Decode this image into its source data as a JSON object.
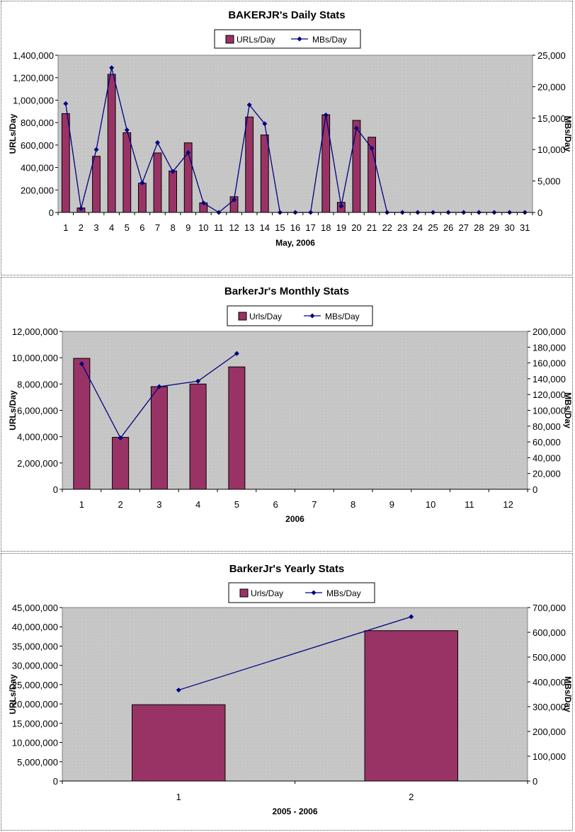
{
  "colors": {
    "bar": "#993366",
    "line": "#000080",
    "plot_background": "#c0c0c0"
  },
  "chart_data": [
    {
      "type": "bar",
      "title": "BAKERJR's Daily Stats",
      "xlabel": "May, 2006",
      "ylabel": "URLs/Day",
      "y2label": "MBs/Day",
      "categories": [
        "1",
        "2",
        "3",
        "4",
        "5",
        "6",
        "7",
        "8",
        "9",
        "10",
        "11",
        "12",
        "13",
        "14",
        "15",
        "16",
        "17",
        "18",
        "19",
        "20",
        "21",
        "22",
        "23",
        "24",
        "25",
        "26",
        "27",
        "28",
        "29",
        "30",
        "31"
      ],
      "ylim": [
        0,
        1400000
      ],
      "y2lim": [
        0,
        25000
      ],
      "yticks": [
        "0",
        "200,000",
        "400,000",
        "600,000",
        "800,000",
        "1,000,000",
        "1,200,000",
        "1,400,000"
      ],
      "y2ticks": [
        "0",
        "5,000",
        "10,000",
        "15,000",
        "20,000",
        "25,000"
      ],
      "legend_position": "top",
      "series": [
        {
          "name": "URLs/Day",
          "kind": "bar",
          "axis": "left",
          "values": [
            880000,
            40000,
            500000,
            1230000,
            710000,
            260000,
            530000,
            370000,
            620000,
            85000,
            0,
            140000,
            850000,
            690000,
            0,
            0,
            0,
            870000,
            90000,
            820000,
            670000,
            0,
            0,
            0,
            0,
            0,
            0,
            0,
            0,
            0,
            0
          ]
        },
        {
          "name": "MBs/Day",
          "kind": "line",
          "axis": "right",
          "values": [
            17300,
            600,
            10000,
            23000,
            13100,
            4700,
            11100,
            6500,
            9500,
            1500,
            0,
            2000,
            17100,
            14100,
            0,
            0,
            0,
            15500,
            1000,
            13400,
            10200,
            0,
            0,
            0,
            0,
            0,
            0,
            0,
            0,
            0,
            0
          ]
        }
      ]
    },
    {
      "type": "bar",
      "title": "BarkerJr's Monthly Stats",
      "xlabel": "2006",
      "ylabel": "URLs/Day",
      "y2label": "MBs/Day",
      "categories": [
        "1",
        "2",
        "3",
        "4",
        "5",
        "6",
        "7",
        "8",
        "9",
        "10",
        "11",
        "12"
      ],
      "ylim": [
        0,
        12000000
      ],
      "y2lim": [
        0,
        200000
      ],
      "yticks": [
        "0",
        "2,000,000",
        "4,000,000",
        "6,000,000",
        "8,000,000",
        "10,000,000",
        "12,000,000"
      ],
      "y2ticks": [
        "0",
        "20,000",
        "40,000",
        "60,000",
        "80,000",
        "100,000",
        "120,000",
        "140,000",
        "160,000",
        "180,000",
        "200,000"
      ],
      "legend_position": "top",
      "series": [
        {
          "name": "Urls/Day",
          "kind": "bar",
          "axis": "left",
          "values": [
            9950000,
            3950000,
            7800000,
            8000000,
            9300000,
            null,
            null,
            null,
            null,
            null,
            null,
            null
          ]
        },
        {
          "name": "MBs/Day",
          "kind": "line",
          "axis": "right",
          "values": [
            159000,
            65000,
            130000,
            137000,
            172000,
            null,
            null,
            null,
            null,
            null,
            null,
            null
          ]
        }
      ]
    },
    {
      "type": "bar",
      "title": "BarkerJr's Yearly Stats",
      "xlabel": "2005 - 2006",
      "ylabel": "URLs/Day",
      "y2label": "MBs/Day",
      "categories": [
        "1",
        "2"
      ],
      "ylim": [
        0,
        45000000
      ],
      "y2lim": [
        0,
        700000
      ],
      "yticks": [
        "0",
        "5,000,000",
        "10,000,000",
        "15,000,000",
        "20,000,000",
        "25,000,000",
        "30,000,000",
        "35,000,000",
        "40,000,000",
        "45,000,000"
      ],
      "y2ticks": [
        "0",
        "100,000",
        "200,000",
        "300,000",
        "400,000",
        "500,000",
        "600,000",
        "700,000"
      ],
      "legend_position": "top",
      "series": [
        {
          "name": "Urls/Day",
          "kind": "bar",
          "axis": "left",
          "values": [
            19800000,
            39000000
          ]
        },
        {
          "name": "MBs/Day",
          "kind": "line",
          "axis": "right",
          "values": [
            367000,
            663000
          ]
        }
      ]
    }
  ]
}
